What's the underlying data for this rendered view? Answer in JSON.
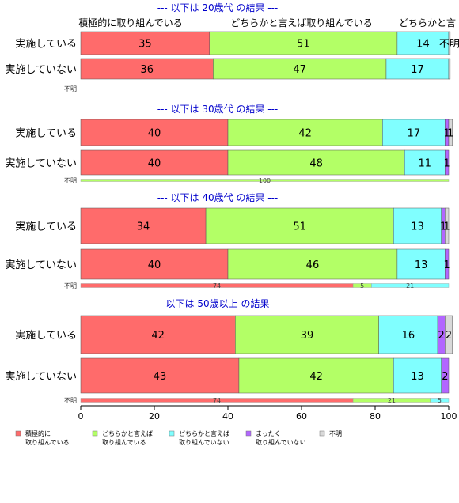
{
  "chart_data": {
    "type": "bar",
    "orientation": "horizontal",
    "stacked": true,
    "xlim": [
      0,
      100
    ],
    "x_ticks": [
      "0",
      "20",
      "40",
      "60",
      "80",
      "100"
    ],
    "legend_position": "bottom",
    "category_labels": [
      "積極的に取り組んでいる",
      "どちらかと言えば取り組んでいる",
      "どちらかと言"
    ],
    "series": [
      {
        "name": "積極的に\n取り組んでいる",
        "color": "#ff6b6b"
      },
      {
        "name": "どちらかと言えば\n取り組んでいる",
        "color": "#b3ff66"
      },
      {
        "name": "どちらかと言えば\n取り組んでいない",
        "color": "#80ffff"
      },
      {
        "name": "まったく\n取り組んでいない",
        "color": "#b266ff"
      },
      {
        "name": "不明",
        "color": "#d9d9d9"
      }
    ],
    "panels": [
      {
        "title": "--- 以下は 20歳代 の結果 ---",
        "rows": [
          {
            "label": "実施している",
            "values": [
              35,
              51,
              14,
              0,
              0.4
            ],
            "labels": [
              "35",
              "51",
              "14",
              "",
              "不明"
            ]
          },
          {
            "label": "実施していない",
            "values": [
              36,
              47,
              17,
              0,
              0.4
            ],
            "labels": [
              "36",
              "47",
              "17",
              "",
              ""
            ]
          }
        ],
        "unknown": {
          "label": "不明",
          "values": [],
          "labels": []
        }
      },
      {
        "title": "--- 以下は 30歳代 の結果 ---",
        "rows": [
          {
            "label": "実施している",
            "values": [
              40,
              42,
              17,
              1,
              1
            ],
            "labels": [
              "40",
              "42",
              "17",
              "1",
              "1"
            ]
          },
          {
            "label": "実施していない",
            "values": [
              40,
              48,
              11,
              1,
              0
            ],
            "labels": [
              "40",
              "48",
              "11",
              "1",
              ""
            ]
          }
        ],
        "unknown": {
          "label": "不明",
          "values": [
            0,
            100,
            0,
            0,
            0
          ],
          "labels": [
            "",
            "100",
            "",
            "",
            ""
          ]
        }
      },
      {
        "title": "--- 以下は 40歳代 の結果 ---",
        "rows": [
          {
            "label": "実施している",
            "values": [
              34,
              51,
              13,
              1,
              1
            ],
            "labels": [
              "34",
              "51",
              "13",
              "1",
              "1"
            ]
          },
          {
            "label": "実施していない",
            "values": [
              40,
              46,
              13,
              1,
              0
            ],
            "labels": [
              "40",
              "46",
              "13",
              "1",
              ""
            ]
          }
        ],
        "unknown": {
          "label": "不明",
          "values": [
            74,
            5,
            21,
            0,
            0
          ],
          "labels": [
            "74",
            "5",
            "21",
            "",
            ""
          ]
        }
      },
      {
        "title": "--- 以下は 50歳以上 の結果 ---",
        "rows": [
          {
            "label": "実施している",
            "values": [
              42,
              39,
              16,
              2,
              2
            ],
            "labels": [
              "42",
              "39",
              "16",
              "2",
              "2"
            ]
          },
          {
            "label": "実施していない",
            "values": [
              43,
              42,
              13,
              2,
              0
            ],
            "labels": [
              "43",
              "42",
              "13",
              "2",
              ""
            ]
          }
        ],
        "unknown": {
          "label": "不明",
          "values": [
            74,
            21,
            5,
            0,
            0
          ],
          "labels": [
            "74",
            "21",
            "5",
            "",
            ""
          ]
        }
      }
    ]
  }
}
